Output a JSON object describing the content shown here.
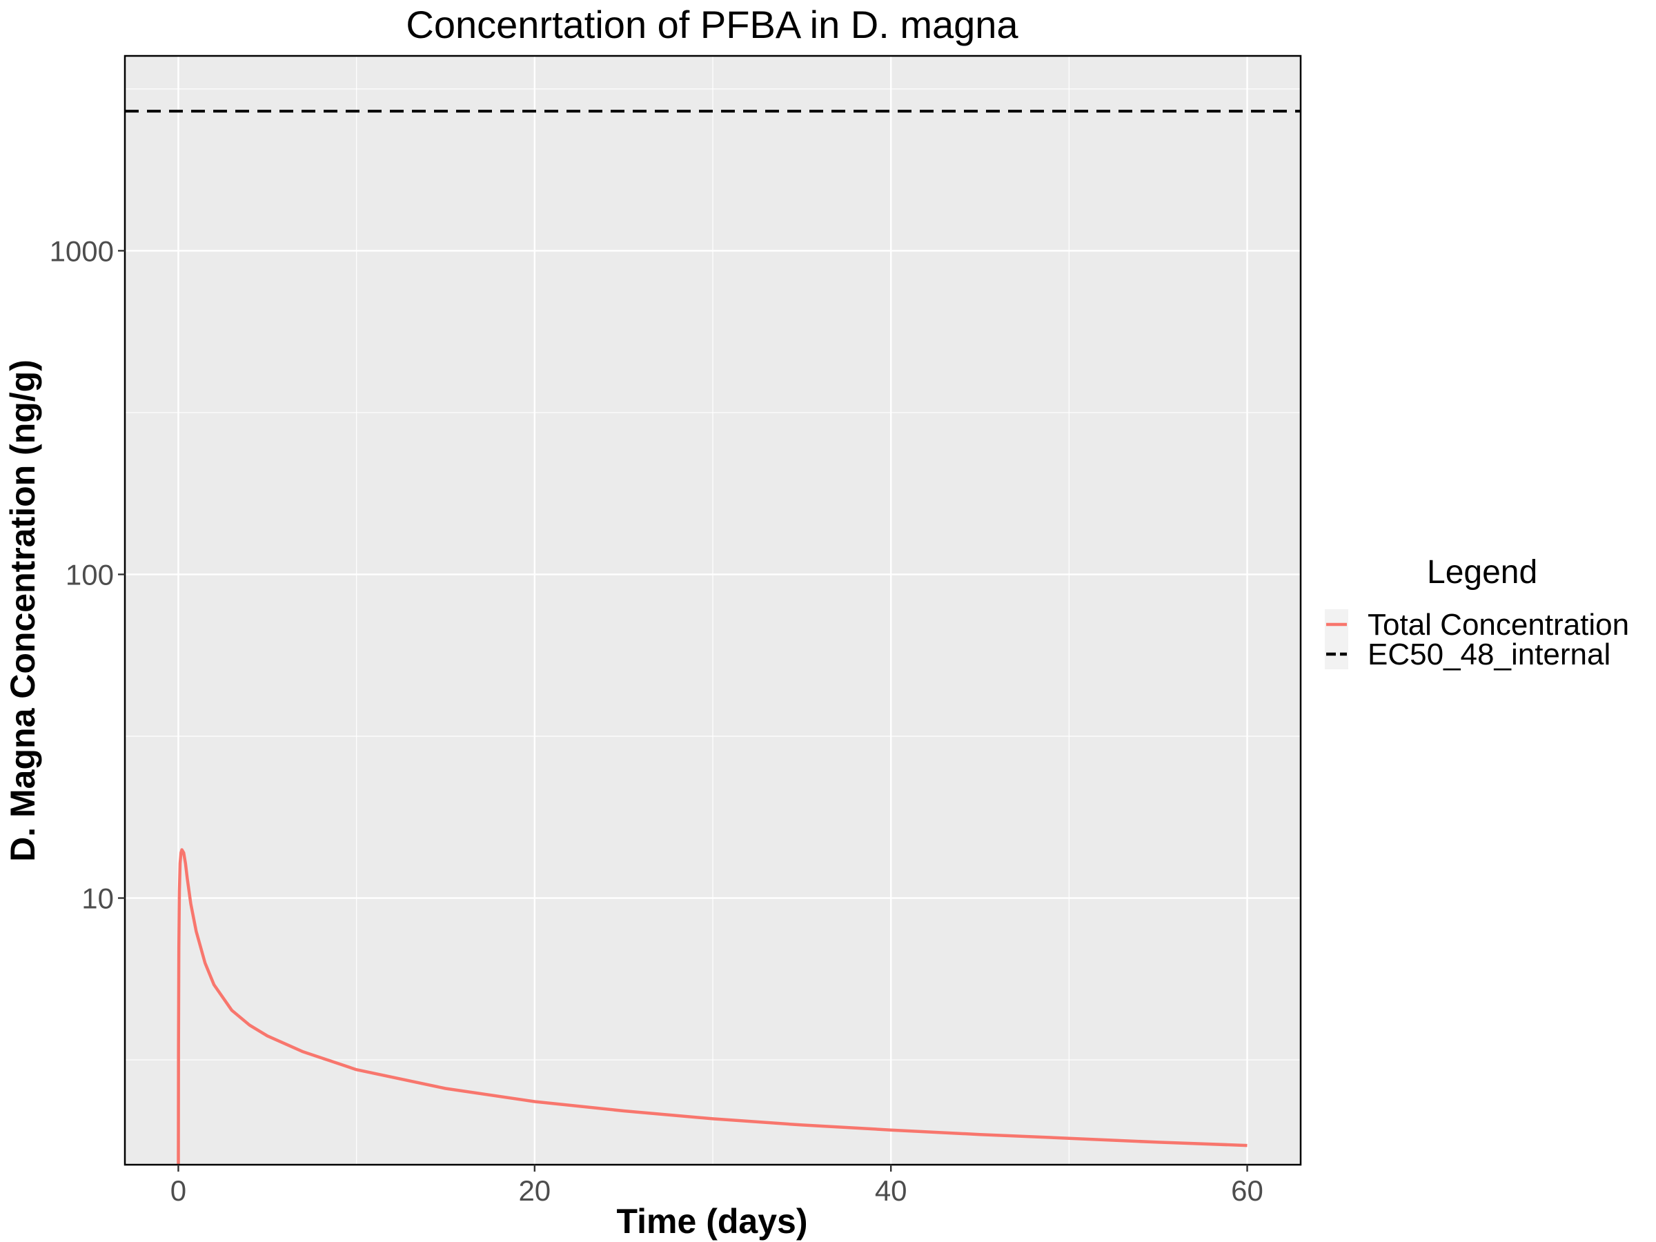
{
  "chart_data": {
    "type": "line",
    "title": "Concenrtation of PFBA in D. magna",
    "xlabel": "Time (days)",
    "ylabel": "D. Magna Concentration (ng/g)",
    "xlim": [
      -3,
      63
    ],
    "ylim": [
      1.5,
      4000
    ],
    "yscale": "log10",
    "x_ticks": [
      0,
      20,
      40,
      60
    ],
    "x_tick_labels": [
      "0",
      "20",
      "40",
      "60"
    ],
    "y_ticks": [
      10,
      100,
      1000
    ],
    "y_tick_labels": [
      "10",
      "100",
      "1000"
    ],
    "grid": true,
    "legend": {
      "title": "Legend",
      "position": "right"
    },
    "series": [
      {
        "name": "Total Concentration",
        "color": "#F8766D",
        "style": "solid",
        "x": [
          0,
          0.01,
          0.03,
          0.06,
          0.1,
          0.15,
          0.2,
          0.3,
          0.4,
          0.5,
          0.7,
          1,
          1.5,
          2,
          3,
          4,
          5,
          7,
          10,
          15,
          20,
          25,
          30,
          35,
          40,
          45,
          50,
          55,
          60
        ],
        "y": [
          1.5,
          3.5,
          7,
          10.5,
          12.8,
          13.8,
          14.1,
          13.8,
          12.8,
          11.5,
          9.6,
          7.9,
          6.3,
          5.4,
          4.5,
          4.05,
          3.75,
          3.35,
          2.95,
          2.58,
          2.35,
          2.2,
          2.08,
          1.99,
          1.92,
          1.86,
          1.81,
          1.76,
          1.72
        ]
      },
      {
        "name": "EC50_48_internal",
        "color": "#000000",
        "style": "dashed",
        "x": [
          -3,
          63
        ],
        "y": [
          2700,
          2700
        ]
      }
    ]
  }
}
